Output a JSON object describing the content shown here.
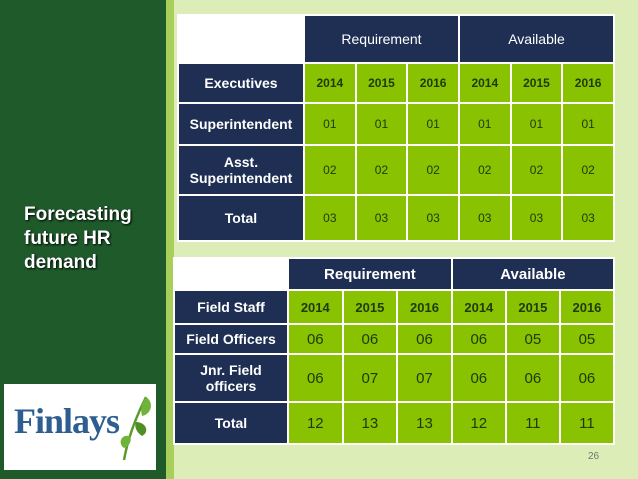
{
  "slide": {
    "title_lines": [
      "Forecasting",
      "future HR",
      "demand"
    ],
    "page_number": "26",
    "logo_text": "Finlays"
  },
  "table1": {
    "group_headers": [
      "Requirement",
      "Available"
    ],
    "header_label": "Executives",
    "years": [
      "2014",
      "2015",
      "2016",
      "2014",
      "2015",
      "2016"
    ],
    "rows": [
      {
        "label": "Superintendent",
        "values": [
          "01",
          "01",
          "01",
          "01",
          "01",
          "01"
        ]
      },
      {
        "label_lines": [
          "Asst.",
          "Superintendent"
        ],
        "values": [
          "02",
          "02",
          "02",
          "02",
          "02",
          "02"
        ]
      },
      {
        "label": "Total",
        "values": [
          "03",
          "03",
          "03",
          "03",
          "03",
          "03"
        ]
      }
    ]
  },
  "table2": {
    "group_headers": [
      "Requirement",
      "Available"
    ],
    "header_label": "Field Staff",
    "years": [
      "2014",
      "2015",
      "2016",
      "2014",
      "2015",
      "2016"
    ],
    "rows": [
      {
        "label": "Field Officers",
        "values": [
          "06",
          "06",
          "06",
          "06",
          "05",
          "05"
        ]
      },
      {
        "label_lines": [
          "Jnr. Field",
          "officers"
        ],
        "values": [
          "06",
          "07",
          "07",
          "06",
          "06",
          "06"
        ]
      },
      {
        "label": "Total",
        "values": [
          "12",
          "13",
          "13",
          "12",
          "11",
          "11"
        ]
      }
    ]
  },
  "colors": {
    "sidebar": "#1f5a2b",
    "header_navy": "#1f2f54",
    "cell_green": "#88c200",
    "background": "#dcedb8"
  }
}
